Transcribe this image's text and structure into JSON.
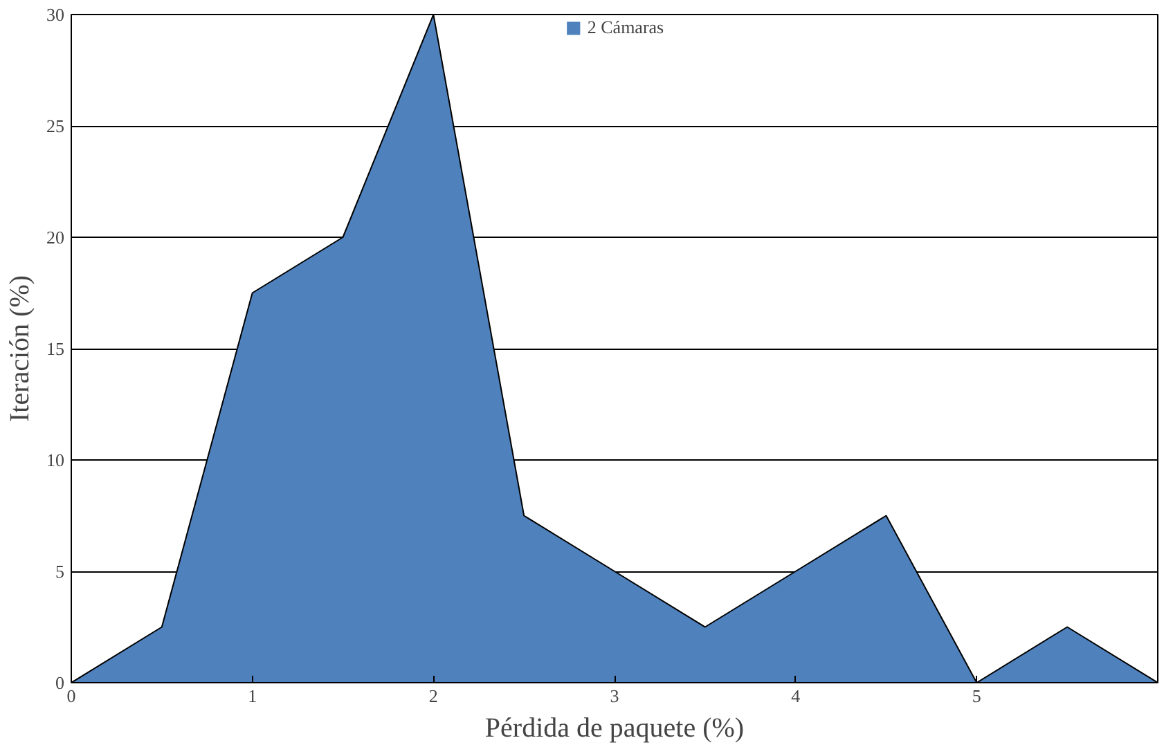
{
  "chart_data": {
    "type": "area",
    "xlabel": "Pérdida de paquete (%)",
    "ylabel": "Iteración (%)",
    "x": [
      0,
      0.5,
      1,
      1.5,
      2,
      2.5,
      3,
      3.5,
      4,
      4.5,
      5,
      5.5,
      6
    ],
    "series": [
      {
        "name": "2 Cámaras",
        "color": "#4f81bd",
        "values": [
          0,
          2.5,
          17.5,
          20,
          30,
          7.5,
          5,
          2.5,
          5,
          7.5,
          0,
          2.5,
          0
        ]
      }
    ],
    "xlim": [
      0,
      6
    ],
    "xticks": [
      0,
      1,
      2,
      3,
      4,
      5
    ],
    "ylim": [
      0,
      30
    ],
    "yticks": [
      0,
      5,
      10,
      15,
      20,
      25,
      30
    ],
    "grid": "y",
    "legend": "top"
  }
}
